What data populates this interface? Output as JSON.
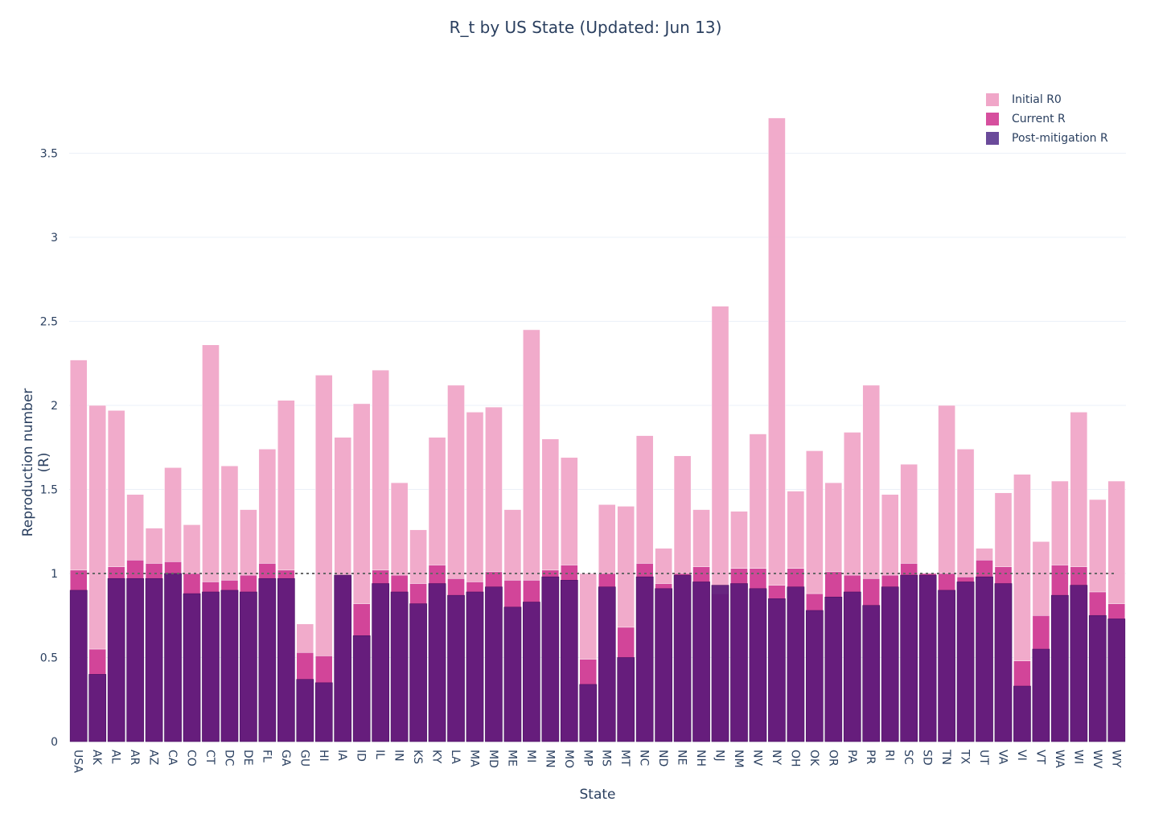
{
  "chart_data": {
    "type": "bar",
    "barmode": "overlay",
    "title": "R_t by US State (Updated: Jun 13)",
    "xlabel": "State",
    "ylabel": "Reproduction number (R)",
    "ylim": [
      0,
      4.0
    ],
    "yticks": [
      0,
      0.5,
      1,
      1.5,
      2,
      2.5,
      3,
      3.5
    ],
    "ytick_labels": [
      "0",
      "0.5",
      "1",
      "1.5",
      "2",
      "2.5",
      "3",
      "3.5"
    ],
    "grid": true,
    "reference_line": {
      "y": 1,
      "style": "dotted"
    },
    "legend_position": "top-right",
    "categories": [
      "USA",
      "AK",
      "AL",
      "AR",
      "AZ",
      "CA",
      "CO",
      "CT",
      "DC",
      "DE",
      "FL",
      "GA",
      "GU",
      "HI",
      "IA",
      "ID",
      "IL",
      "IN",
      "KS",
      "KY",
      "LA",
      "MA",
      "MD",
      "ME",
      "MI",
      "MN",
      "MO",
      "MP",
      "MS",
      "MT",
      "NC",
      "ND",
      "NE",
      "NH",
      "NJ",
      "NM",
      "NV",
      "NY",
      "OH",
      "OK",
      "OR",
      "PA",
      "PR",
      "RI",
      "SC",
      "SD",
      "TN",
      "TX",
      "UT",
      "VA",
      "VI",
      "VT",
      "WA",
      "WI",
      "WV",
      "WY"
    ],
    "series": [
      {
        "name": "Initial R0",
        "color": "#f0a6c8",
        "values": [
          2.27,
          2.0,
          1.97,
          1.47,
          1.27,
          1.63,
          1.29,
          2.36,
          1.64,
          1.38,
          1.74,
          2.03,
          0.7,
          2.18,
          1.81,
          2.01,
          2.21,
          1.54,
          1.26,
          1.81,
          2.12,
          1.96,
          1.99,
          1.38,
          2.45,
          1.8,
          1.69,
          1.0,
          1.41,
          1.4,
          1.82,
          1.15,
          1.7,
          1.38,
          2.59,
          1.37,
          1.83,
          3.71,
          1.49,
          1.73,
          1.54,
          1.84,
          2.12,
          1.47,
          1.65,
          1.0,
          2.0,
          1.74,
          1.15,
          1.48,
          1.59,
          1.19,
          1.55,
          1.96,
          1.44,
          1.55
        ]
      },
      {
        "name": "Current R",
        "color": "#d03f96",
        "values": [
          1.02,
          0.55,
          1.04,
          1.08,
          1.06,
          1.07,
          1.0,
          0.95,
          0.96,
          0.99,
          1.06,
          1.02,
          0.53,
          0.51,
          0.99,
          0.82,
          1.02,
          0.99,
          0.94,
          1.05,
          0.97,
          0.95,
          1.01,
          0.96,
          0.96,
          1.02,
          1.05,
          0.49,
          1.0,
          0.68,
          1.06,
          0.94,
          1.0,
          1.04,
          0.88,
          1.03,
          1.03,
          0.93,
          1.03,
          0.88,
          1.01,
          0.99,
          0.97,
          0.99,
          1.06,
          1.0,
          1.0,
          0.98,
          1.08,
          1.04,
          0.48,
          0.75,
          1.05,
          1.04,
          0.89,
          0.82
        ]
      },
      {
        "name": "Post-mitigation R",
        "color": "#5c1a7a",
        "values": [
          0.9,
          0.4,
          0.97,
          0.97,
          0.97,
          1.0,
          0.88,
          0.89,
          0.9,
          0.89,
          0.97,
          0.97,
          0.37,
          0.35,
          0.99,
          0.63,
          0.94,
          0.89,
          0.82,
          0.94,
          0.87,
          0.89,
          0.92,
          0.8,
          0.83,
          0.98,
          0.96,
          0.34,
          0.92,
          0.5,
          0.98,
          0.91,
          0.99,
          0.95,
          0.93,
          0.94,
          0.91,
          0.85,
          0.92,
          0.78,
          0.86,
          0.89,
          0.81,
          0.92,
          0.99,
          0.99,
          0.9,
          0.95,
          0.98,
          0.94,
          0.33,
          0.55,
          0.87,
          0.93,
          0.75,
          0.73
        ]
      }
    ]
  }
}
